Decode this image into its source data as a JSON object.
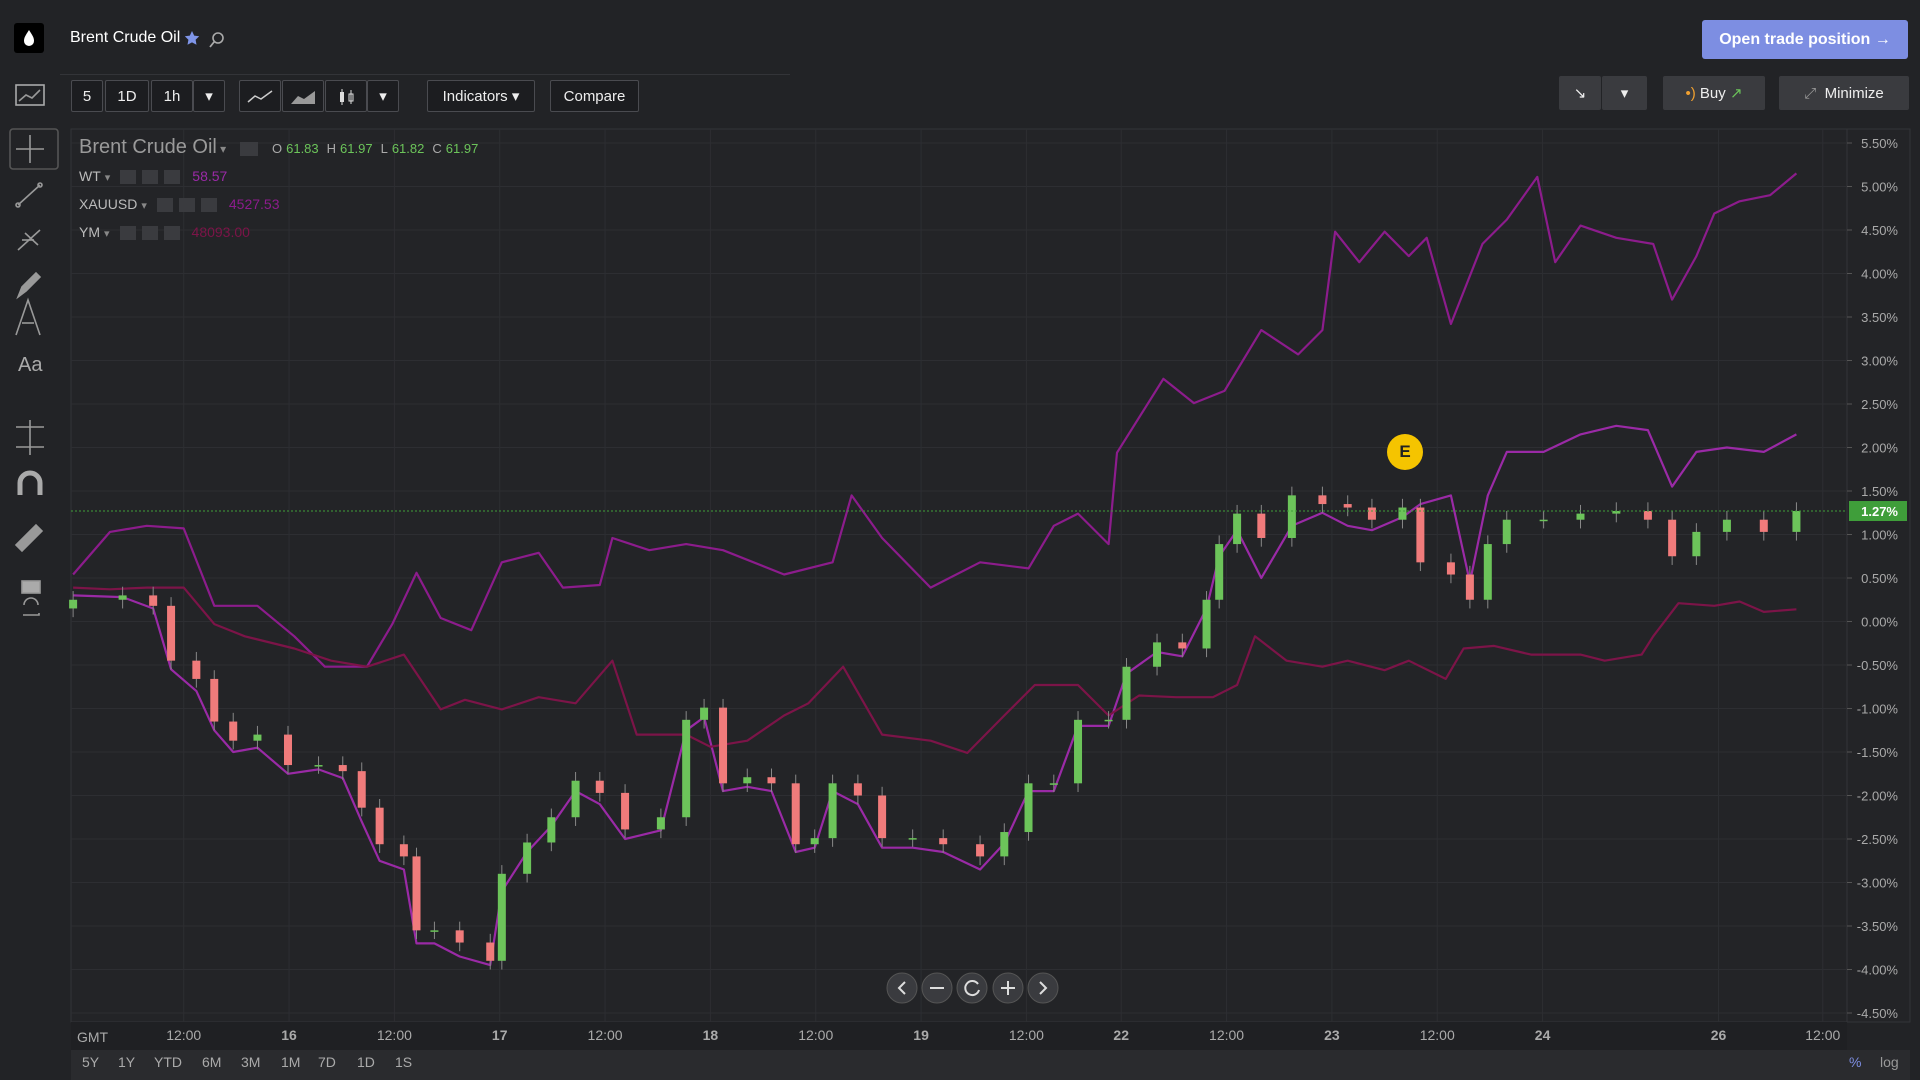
{
  "header": {
    "title": "Brent Crude Oil",
    "cta": "Open trade position"
  },
  "toolbar": {
    "intervals": [
      "5",
      "1D",
      "1h"
    ],
    "indicators": "Indicators",
    "compare": "Compare",
    "buy": "Buy",
    "minimize": "Minimize"
  },
  "periods": [
    "5Y",
    "1Y",
    "YTD",
    "6M",
    "3M",
    "1M",
    "7D",
    "1D",
    "1S"
  ],
  "scale_modes": [
    "%",
    "log"
  ],
  "timezone": "GMT",
  "event_marker": "E",
  "legend": {
    "main": "Brent Crude Oil",
    "ohlc": [
      {
        "label": "O",
        "value": "61.83"
      },
      {
        "label": "H",
        "value": "61.97"
      },
      {
        "label": "L",
        "value": "61.82"
      },
      {
        "label": "C",
        "value": "61.97"
      }
    ],
    "last": [
      "58.57",
      "4527.53",
      "48093.00"
    ]
  },
  "chart_data": {
    "type": "candlestick",
    "name": "Brent Crude Oil",
    "grid": true,
    "up_color": "#6cc45a",
    "down_color": "#f07b7b",
    "candles": {
      "x": [
        -1.05,
        -0.58,
        -0.29,
        -0.12,
        0.12,
        0.29,
        0.47,
        0.7,
        0.99,
        1.28,
        1.51,
        1.69,
        1.86,
        2.09,
        2.21,
        2.38,
        2.62,
        2.91,
        3.02,
        3.26,
        3.49,
        3.72,
        3.95,
        4.19,
        4.53,
        4.77,
        4.94,
        5.12,
        5.35,
        5.58,
        5.81,
        5.99,
        6.16,
        6.4,
        6.63,
        6.92,
        7.21,
        7.56,
        7.79,
        8.02,
        8.26,
        8.49,
        8.78,
        8.95,
        9.24,
        9.48,
        9.71,
        9.83,
        10.0,
        10.23,
        10.52,
        10.81,
        11.05,
        11.28,
        11.57,
        11.74,
        12.03,
        12.21,
        12.38,
        12.56,
        12.91,
        13.26,
        13.6,
        13.9,
        14.13,
        14.36,
        14.65,
        15.0,
        15.31
      ],
      "open": [
        0.15,
        0.25,
        0.3,
        0.18,
        -0.45,
        -0.66,
        -1.15,
        -1.37,
        -1.3,
        -1.65,
        -1.65,
        -1.72,
        -2.14,
        -2.56,
        -2.7,
        -3.55,
        -3.55,
        -3.69,
        -3.9,
        -2.9,
        -2.54,
        -2.25,
        -1.83,
        -1.97,
        -2.39,
        -2.25,
        -1.13,
        -0.99,
        -1.86,
        -1.79,
        -1.86,
        -2.56,
        -2.49,
        -1.86,
        -2.0,
        -2.49,
        -2.49,
        -2.56,
        -2.7,
        -2.42,
        -1.86,
        -1.86,
        -1.13,
        -1.13,
        -0.52,
        -0.24,
        -0.31,
        0.25,
        0.89,
        1.24,
        0.96,
        1.45,
        1.35,
        1.31,
        1.17,
        1.31,
        0.68,
        0.54,
        0.25,
        0.89,
        1.17,
        1.17,
        1.24,
        1.27,
        1.17,
        0.75,
        1.03,
        1.17,
        1.03
      ],
      "high": [
        0.35,
        0.4,
        0.4,
        0.28,
        -0.35,
        -0.56,
        -1.05,
        -1.2,
        -1.2,
        -1.55,
        -1.55,
        -1.62,
        -2.04,
        -2.46,
        -2.6,
        -3.45,
        -3.45,
        -3.59,
        -2.8,
        -2.44,
        -2.15,
        -1.73,
        -1.73,
        -1.87,
        -2.15,
        -1.03,
        -0.89,
        -0.89,
        -1.69,
        -1.69,
        -1.76,
        -2.39,
        -1.76,
        -1.76,
        -1.9,
        -2.39,
        -2.39,
        -2.46,
        -2.32,
        -1.76,
        -1.76,
        -1.03,
        -1.03,
        -0.42,
        -0.14,
        -0.14,
        0.35,
        0.99,
        1.34,
        1.34,
        1.55,
        1.55,
        1.45,
        1.41,
        1.41,
        1.41,
        0.78,
        0.64,
        0.99,
        1.27,
        1.27,
        1.34,
        1.37,
        1.37,
        1.27,
        1.13,
        1.27,
        1.27,
        1.37
      ],
      "low": [
        0.05,
        0.15,
        0.08,
        -0.55,
        -0.76,
        -1.25,
        -1.47,
        -1.47,
        -1.75,
        -1.75,
        -1.82,
        -2.24,
        -2.66,
        -2.8,
        -3.65,
        -3.65,
        -3.79,
        -4.0,
        -4.0,
        -3.0,
        -2.64,
        -2.35,
        -2.07,
        -2.49,
        -2.49,
        -2.35,
        -1.23,
        -1.96,
        -1.96,
        -1.96,
        -2.66,
        -2.66,
        -2.59,
        -2.1,
        -2.59,
        -2.59,
        -2.66,
        -2.8,
        -2.8,
        -2.52,
        -1.96,
        -1.96,
        -1.23,
        -1.23,
        -0.62,
        -0.41,
        -0.41,
        0.15,
        0.79,
        0.86,
        0.86,
        1.25,
        1.21,
        1.07,
        1.07,
        0.58,
        0.44,
        0.15,
        0.15,
        0.79,
        1.07,
        1.07,
        1.14,
        1.07,
        0.65,
        0.65,
        0.93,
        0.93,
        0.93
      ],
      "close": [
        0.25,
        0.3,
        0.18,
        -0.45,
        -0.66,
        -1.15,
        -1.37,
        -1.3,
        -1.65,
        -1.65,
        -1.72,
        -2.14,
        -2.56,
        -2.7,
        -3.55,
        -3.55,
        -3.69,
        -3.9,
        -2.9,
        -2.54,
        -2.25,
        -1.83,
        -1.97,
        -2.39,
        -2.25,
        -1.13,
        -0.99,
        -1.86,
        -1.79,
        -1.86,
        -2.56,
        -2.49,
        -1.86,
        -2.0,
        -2.49,
        -2.49,
        -2.56,
        -2.7,
        -2.42,
        -1.86,
        -1.86,
        -1.13,
        -1.13,
        -0.52,
        -0.24,
        -0.31,
        0.25,
        0.89,
        1.24,
        0.96,
        1.45,
        1.35,
        1.31,
        1.17,
        1.31,
        0.68,
        0.54,
        0.25,
        0.89,
        1.17,
        1.17,
        1.24,
        1.27,
        1.17,
        0.75,
        1.03,
        1.17,
        1.03,
        1.27
      ]
    },
    "series": [
      {
        "name": "WT",
        "color": "#9a2aa6",
        "x": [
          -1.05,
          -0.58,
          -0.29,
          -0.12,
          0.12,
          0.29,
          0.47,
          0.7,
          0.99,
          1.28,
          1.51,
          1.69,
          1.86,
          2.09,
          2.21,
          2.38,
          2.62,
          2.91,
          3.02,
          3.26,
          3.49,
          3.72,
          3.95,
          4.19,
          4.53,
          4.77,
          4.94,
          5.12,
          5.35,
          5.58,
          5.81,
          5.99,
          6.16,
          6.4,
          6.63,
          6.92,
          7.21,
          7.56,
          7.79,
          8.02,
          8.26,
          8.49,
          8.78,
          8.95,
          9.24,
          9.48,
          9.71,
          9.83,
          10.0,
          10.23,
          10.52,
          10.81,
          11.05,
          11.28,
          11.57,
          11.74,
          12.03,
          12.21,
          12.38,
          12.56,
          12.91,
          13.26,
          13.6,
          13.9,
          14.13,
          14.36,
          14.65,
          15.0,
          15.31
        ],
        "values": [
          0.3,
          0.28,
          0.15,
          -0.55,
          -0.8,
          -1.25,
          -1.5,
          -1.45,
          -1.75,
          -1.7,
          -1.8,
          -2.3,
          -2.75,
          -2.85,
          -3.7,
          -3.7,
          -3.85,
          -3.95,
          -3.1,
          -2.65,
          -2.35,
          -1.95,
          -2.1,
          -2.5,
          -2.4,
          -1.25,
          -1.1,
          -1.95,
          -1.9,
          -1.95,
          -2.65,
          -2.6,
          -1.95,
          -2.1,
          -2.6,
          -2.6,
          -2.65,
          -2.85,
          -2.55,
          -1.95,
          -1.95,
          -1.2,
          -1.2,
          -0.6,
          -0.35,
          -0.4,
          0.15,
          0.75,
          1.05,
          0.5,
          1.1,
          1.25,
          1.1,
          1.05,
          1.2,
          1.35,
          1.45,
          0.45,
          1.45,
          1.95,
          1.95,
          2.15,
          2.25,
          2.2,
          1.55,
          1.95,
          2.0,
          1.95,
          2.15
        ]
      },
      {
        "name": "XAUUSD",
        "color": "#8c1c8c",
        "x": [
          -1.05,
          -0.7,
          -0.35,
          0,
          0.29,
          0.7,
          1.05,
          1.34,
          1.74,
          1.98,
          2.21,
          2.44,
          2.73,
          3.02,
          3.37,
          3.6,
          3.95,
          4.07,
          4.42,
          4.77,
          5.12,
          5.7,
          6.16,
          6.34,
          6.63,
          7.09,
          7.56,
          8.02,
          8.26,
          8.49,
          8.78,
          8.86,
          9.3,
          9.59,
          9.88,
          10.23,
          10.58,
          10.81,
          10.93,
          11.16,
          11.4,
          11.63,
          11.8,
          12.03,
          12.33,
          12.56,
          12.85,
          13.02,
          13.26,
          13.6,
          13.95,
          14.13,
          14.36,
          14.53,
          14.77,
          15.06,
          15.31
        ],
        "values": [
          0.54,
          1.03,
          1.1,
          1.07,
          0.18,
          0.18,
          -0.17,
          -0.52,
          -0.52,
          -0.03,
          0.56,
          0.04,
          -0.1,
          0.68,
          0.79,
          0.39,
          0.42,
          0.96,
          0.82,
          0.89,
          0.82,
          0.54,
          0.68,
          1.45,
          0.96,
          0.39,
          0.68,
          0.61,
          1.1,
          1.24,
          0.89,
          1.94,
          2.79,
          2.51,
          2.65,
          3.35,
          3.07,
          3.35,
          4.48,
          4.13,
          4.48,
          4.2,
          4.41,
          3.42,
          4.34,
          4.62,
          5.11,
          4.13,
          4.55,
          4.41,
          4.34,
          3.7,
          4.2,
          4.69,
          4.83,
          4.9,
          5.15
        ]
      },
      {
        "name": "YM",
        "color": "#7c1448",
        "x": [
          -1.05,
          -0.7,
          -0.35,
          0,
          0.29,
          0.58,
          1.05,
          1.4,
          1.74,
          2.09,
          2.44,
          2.67,
          3.02,
          3.37,
          3.72,
          4.07,
          4.3,
          4.77,
          5.0,
          5.35,
          5.7,
          5.93,
          6.26,
          6.63,
          7.09,
          7.44,
          7.79,
          8.08,
          8.49,
          8.78,
          9.07,
          9.42,
          9.77,
          10.0,
          10.17,
          10.47,
          10.81,
          11.05,
          11.4,
          11.63,
          11.98,
          12.15,
          12.44,
          12.79,
          13.26,
          13.49,
          13.84,
          13.95,
          14.19,
          14.53,
          14.77,
          15.0,
          15.31
        ],
        "values": [
          0.39,
          0.37,
          0.39,
          0.39,
          -0.03,
          -0.17,
          -0.31,
          -0.45,
          -0.52,
          -0.38,
          -1.01,
          -0.9,
          -1.01,
          -0.87,
          -0.94,
          -0.45,
          -1.3,
          -1.3,
          -1.44,
          -1.37,
          -1.08,
          -0.94,
          -0.52,
          -1.3,
          -1.37,
          -1.51,
          -1.08,
          -0.73,
          -0.73,
          -1.08,
          -0.85,
          -0.87,
          -0.87,
          -0.73,
          -0.17,
          -0.45,
          -0.52,
          -0.45,
          -0.56,
          -0.45,
          -0.66,
          -0.31,
          -0.28,
          -0.38,
          -0.38,
          -0.45,
          -0.38,
          -0.17,
          0.21,
          0.18,
          0.23,
          0.11,
          0.14
        ]
      }
    ],
    "current": {
      "value": 1.27,
      "label": "1.27%",
      "color": "#3f9e3a"
    },
    "xlim": [
      -1.07,
      15.79
    ],
    "xticks": [
      {
        "value": 0,
        "label": "12:00"
      },
      {
        "value": 1,
        "label": "16"
      },
      {
        "value": 2,
        "label": "12:00"
      },
      {
        "value": 3,
        "label": "17"
      },
      {
        "value": 4,
        "label": "12:00"
      },
      {
        "value": 5,
        "label": "18"
      },
      {
        "value": 6,
        "label": "12:00"
      },
      {
        "value": 7,
        "label": "19"
      },
      {
        "value": 8,
        "label": "12:00"
      },
      {
        "value": 8.9,
        "label": "22"
      },
      {
        "value": 9.9,
        "label": "12:00"
      },
      {
        "value": 10.9,
        "label": "23"
      },
      {
        "value": 11.9,
        "label": "12:00"
      },
      {
        "value": 12.9,
        "label": "24"
      },
      {
        "value": 14.57,
        "label": "26"
      },
      {
        "value": 15.56,
        "label": "12:00"
      }
    ],
    "ylim": [
      -4.5,
      5.5
    ],
    "yticks": [
      {
        "value": 5.5,
        "label": "5.50%"
      },
      {
        "value": 5,
        "label": "5.00%"
      },
      {
        "value": 4.5,
        "label": "4.50%"
      },
      {
        "value": 4,
        "label": "4.00%"
      },
      {
        "value": 3.5,
        "label": "3.50%"
      },
      {
        "value": 3,
        "label": "3.00%"
      },
      {
        "value": 2.5,
        "label": "2.50%"
      },
      {
        "value": 2,
        "label": "2.00%"
      },
      {
        "value": 1.5,
        "label": "1.50%"
      },
      {
        "value": 1,
        "label": "1.00%"
      },
      {
        "value": 0.5,
        "label": "0.50%"
      },
      {
        "value": 0,
        "label": "0.00%"
      },
      {
        "value": -0.5,
        "label": "-0.50%"
      },
      {
        "value": -1,
        "label": "-1.00%"
      },
      {
        "value": -1.5,
        "label": "-1.50%"
      },
      {
        "value": -2,
        "label": "-2.00%"
      },
      {
        "value": -2.5,
        "label": "-2.50%"
      },
      {
        "value": -3,
        "label": "-3.00%"
      },
      {
        "value": -3.5,
        "label": "-3.50%"
      },
      {
        "value": -4,
        "label": "-4.00%"
      },
      {
        "value": -4.5,
        "label": "-4.50%"
      }
    ]
  }
}
